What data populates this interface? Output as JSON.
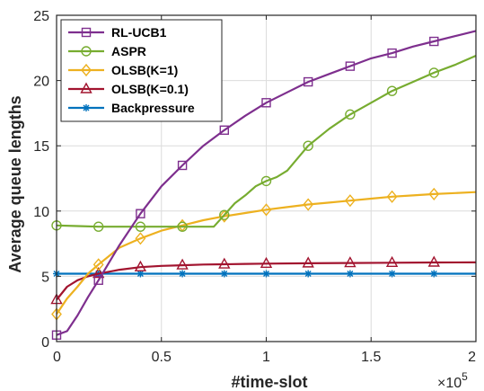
{
  "chart_data": {
    "type": "line",
    "title": "",
    "xlabel": "#time-slot",
    "ylabel": "Average queue lengths",
    "x_multiplier": "×10",
    "x_multiplier_exp": "5",
    "xlim": [
      0,
      2
    ],
    "ylim": [
      0,
      25
    ],
    "xticks": [
      "0",
      "0.5",
      "1",
      "1.5",
      "2"
    ],
    "yticks": [
      "0",
      "5",
      "10",
      "15",
      "20",
      "25"
    ],
    "grid": true,
    "legend_position": "top-left",
    "series": [
      {
        "name": "RL-UCB1",
        "color": "#7E2F8E",
        "marker": "square",
        "x": [
          0,
          0.05,
          0.1,
          0.15,
          0.2,
          0.3,
          0.4,
          0.5,
          0.6,
          0.7,
          0.8,
          0.9,
          1.0,
          1.1,
          1.2,
          1.3,
          1.4,
          1.5,
          1.6,
          1.7,
          1.8,
          1.9,
          2.0
        ],
        "y": [
          0.5,
          0.8,
          2.0,
          3.4,
          4.7,
          7.4,
          9.8,
          11.9,
          13.5,
          15.0,
          16.2,
          17.3,
          18.3,
          19.1,
          19.9,
          20.5,
          21.1,
          21.7,
          22.1,
          22.6,
          23.0,
          23.4,
          23.8
        ],
        "marker_x": [
          0,
          0.2,
          0.4,
          0.6,
          0.8,
          1.0,
          1.2,
          1.4,
          1.6,
          1.8
        ]
      },
      {
        "name": "ASPR",
        "color": "#77AC30",
        "marker": "circle",
        "x": [
          0,
          0.1,
          0.2,
          0.3,
          0.4,
          0.5,
          0.6,
          0.75,
          0.8,
          0.85,
          0.9,
          0.95,
          1.0,
          1.05,
          1.1,
          1.2,
          1.3,
          1.4,
          1.5,
          1.6,
          1.7,
          1.8,
          1.9,
          2.0
        ],
        "y": [
          8.9,
          8.85,
          8.8,
          8.8,
          8.8,
          8.8,
          8.8,
          8.8,
          9.7,
          10.6,
          11.2,
          11.9,
          12.3,
          12.6,
          13.1,
          15.0,
          16.3,
          17.4,
          18.3,
          19.2,
          19.9,
          20.6,
          21.2,
          21.9
        ],
        "marker_x": [
          0,
          0.2,
          0.4,
          0.6,
          0.8,
          1.0,
          1.2,
          1.4,
          1.6,
          1.8
        ]
      },
      {
        "name": "OLSB(K=1)",
        "color": "#EDB120",
        "marker": "diamond",
        "x": [
          0,
          0.05,
          0.1,
          0.15,
          0.2,
          0.3,
          0.4,
          0.5,
          0.6,
          0.7,
          0.8,
          0.9,
          1.0,
          1.1,
          1.2,
          1.3,
          1.4,
          1.5,
          1.6,
          1.7,
          1.8,
          1.9,
          2.0
        ],
        "y": [
          2.1,
          3.3,
          4.2,
          5.2,
          5.9,
          7.2,
          7.9,
          8.5,
          8.9,
          9.3,
          9.6,
          9.85,
          10.1,
          10.3,
          10.5,
          10.65,
          10.8,
          10.95,
          11.1,
          11.2,
          11.3,
          11.38,
          11.45
        ],
        "marker_x": [
          0,
          0.2,
          0.4,
          0.6,
          0.8,
          1.0,
          1.2,
          1.4,
          1.6,
          1.8
        ]
      },
      {
        "name": "OLSB(K=0.1)",
        "color": "#A2142F",
        "marker": "triangle",
        "x": [
          0,
          0.05,
          0.1,
          0.15,
          0.2,
          0.3,
          0.4,
          0.5,
          0.6,
          0.7,
          0.8,
          0.9,
          1.0,
          1.2,
          1.4,
          1.6,
          1.8,
          2.0
        ],
        "y": [
          3.2,
          4.2,
          4.7,
          5.0,
          5.2,
          5.5,
          5.7,
          5.8,
          5.85,
          5.9,
          5.92,
          5.95,
          5.97,
          6.0,
          6.02,
          6.04,
          6.06,
          6.07
        ],
        "marker_x": [
          0,
          0.2,
          0.4,
          0.6,
          0.8,
          1.0,
          1.2,
          1.4,
          1.6,
          1.8
        ]
      },
      {
        "name": "Backpressure",
        "color": "#0072BD",
        "marker": "asterisk",
        "x": [
          0,
          0.2,
          0.4,
          0.6,
          0.8,
          1.0,
          1.2,
          1.4,
          1.6,
          1.8,
          2.0
        ],
        "y": [
          5.2,
          5.2,
          5.2,
          5.2,
          5.2,
          5.2,
          5.2,
          5.2,
          5.2,
          5.2,
          5.2
        ],
        "marker_x": [
          0,
          0.2,
          0.4,
          0.6,
          0.8,
          1.0,
          1.2,
          1.4,
          1.6,
          1.8
        ]
      }
    ]
  }
}
